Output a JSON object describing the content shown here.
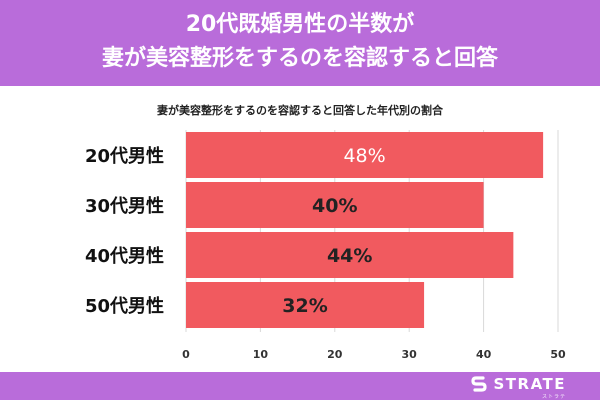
{
  "header": {
    "title_line1": "20代既婚男性の半数が",
    "title_line2": "妻が美容整形をするのを容認すると回答"
  },
  "chart_data": {
    "type": "bar",
    "orientation": "horizontal",
    "title": "妻が美容整形をするのを容認すると回答した年代別の割合",
    "categories": [
      "20代男性",
      "30代男性",
      "40代男性",
      "50代男性"
    ],
    "values": [
      48,
      40,
      44,
      32
    ],
    "value_labels": [
      "48%",
      "40%",
      "44%",
      "32%"
    ],
    "xlim": [
      0,
      50
    ],
    "x_ticks": [
      0,
      10,
      20,
      30,
      40,
      50
    ],
    "grid": true,
    "bar_color": "#f15a5f"
  },
  "footer": {
    "logo_text": "STRATE",
    "logo_sub": "ストラテ"
  },
  "colors": {
    "band": "#b96cda",
    "bar": "#f15a5f",
    "grid": "#d9d9d9"
  }
}
